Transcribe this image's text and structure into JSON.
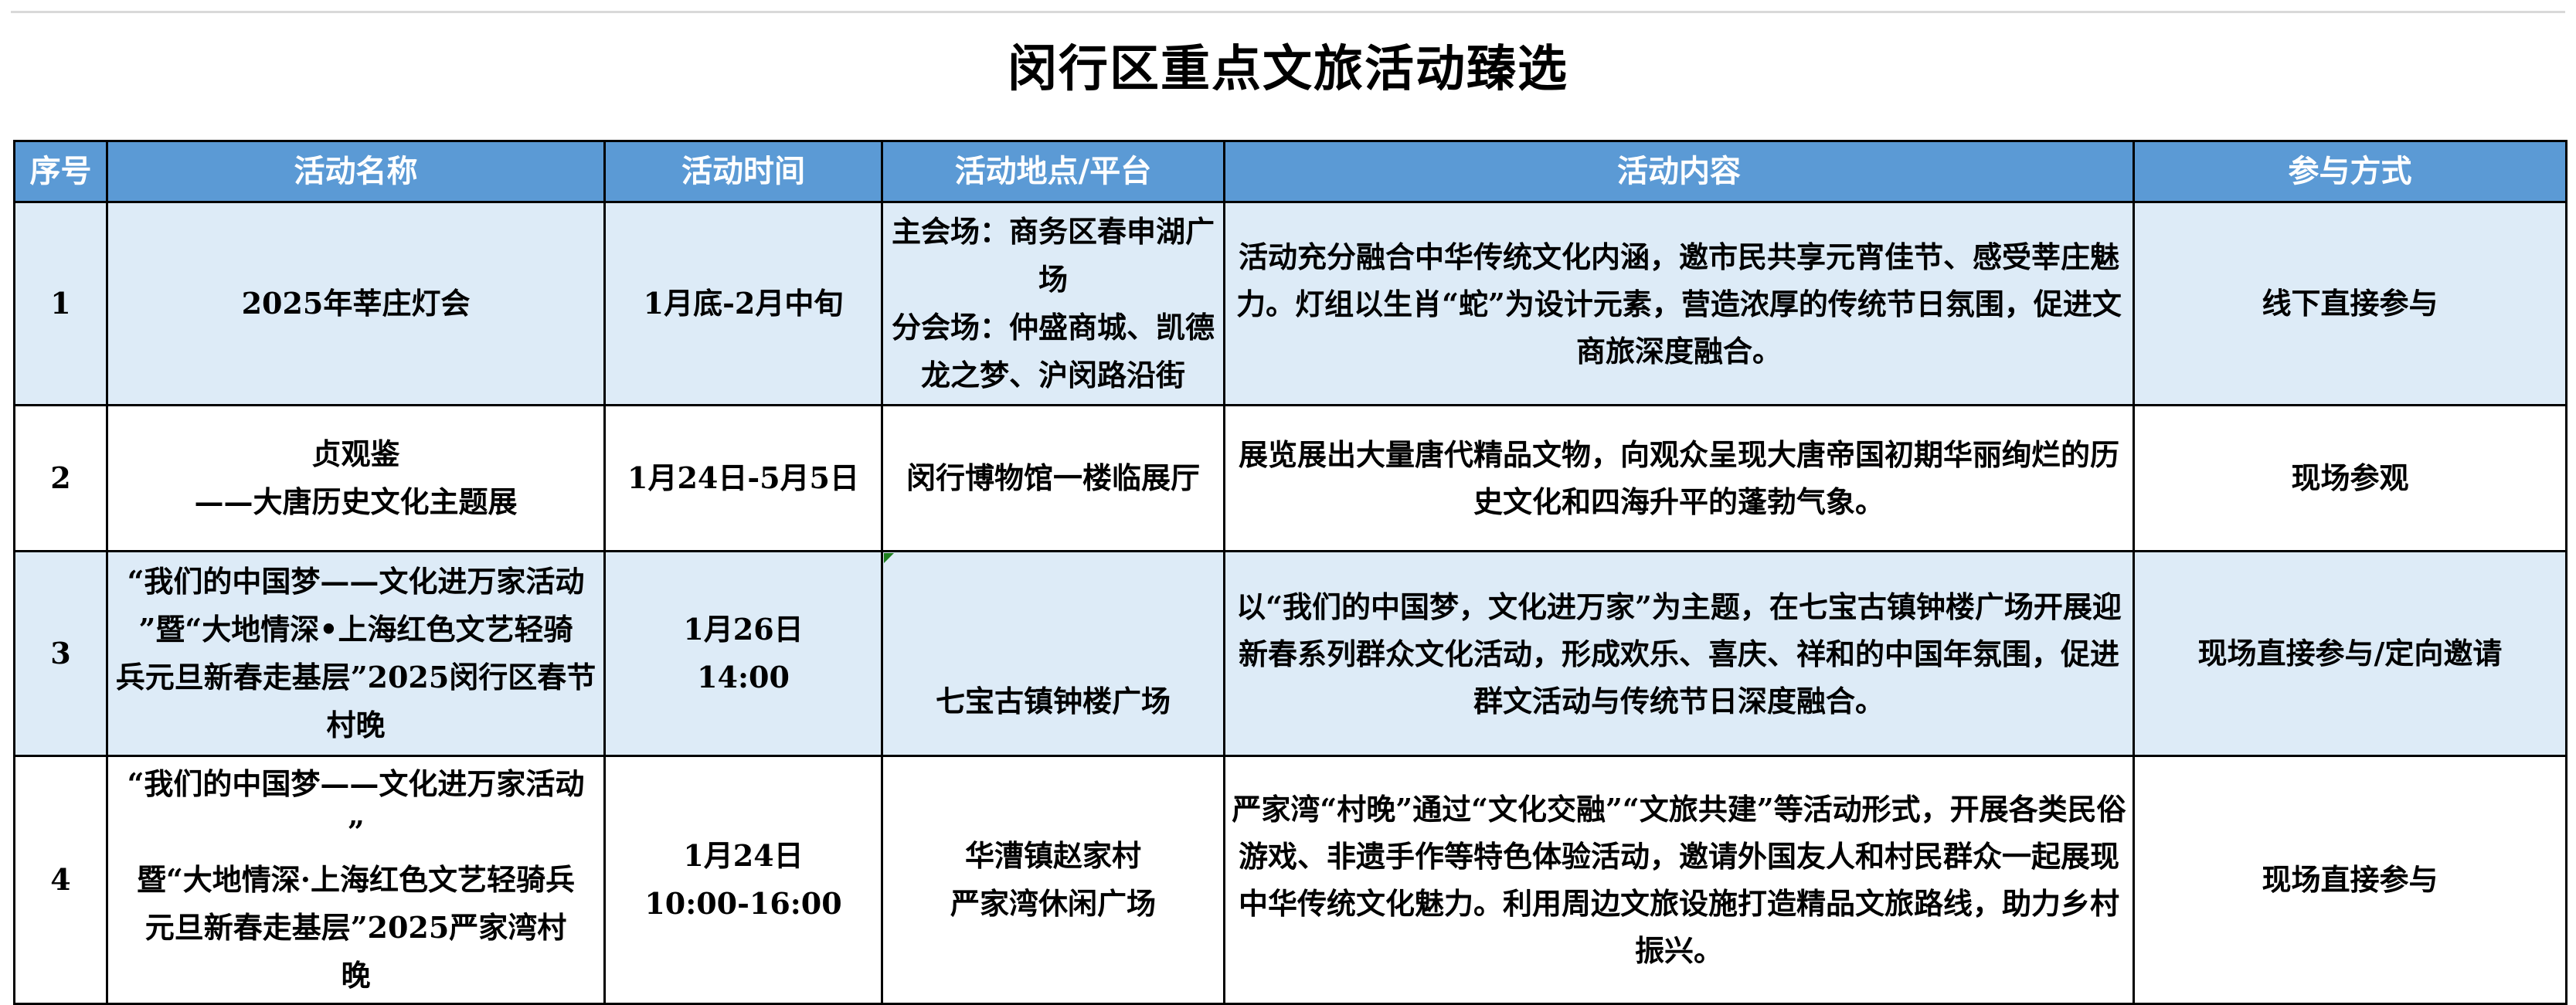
{
  "title": "闵行区重点文旅活动臻选",
  "columns": [
    {
      "label": "序号"
    },
    {
      "label": "活动名称"
    },
    {
      "label": "活动时间"
    },
    {
      "label": "活动地点/平台"
    },
    {
      "label": "活动内容"
    },
    {
      "label": "参与方式"
    }
  ],
  "rows": [
    {
      "index": "1",
      "name": "2025年莘庄灯会",
      "time": "1月底-2月中旬",
      "location": "主会场：商务区春申湖广\n场\n分会场：仲盛商城、凯德\n龙之梦、沪闵路沿街",
      "content": "活动充分融合中华传统文化内涵，邀市民共享元宵佳节、感受莘庄魅力。灯组以生肖“蛇”为设计元素，营造浓厚的传统节日氛围，促进文商旅深度融合。",
      "participation": "线下直接参与"
    },
    {
      "index": "2",
      "name": "贞观鉴\n——大唐历史文化主题展",
      "time": "1月24日-5月5日",
      "location": "闵行博物馆一楼临展厅",
      "content": "展览展出大量唐代精品文物，向观众呈现大唐帝国初期华丽绚烂的历史文化和四海升平的蓬勃气象。",
      "participation": "现场参观"
    },
    {
      "index": "3",
      "name": "“我们的中国梦——文化进万家活动\n”暨“大地情深•上海红色文艺轻骑\n兵元旦新春走基层”2025闵行区春节\n村晚",
      "time": "1月26日\n14:00",
      "location": "七宝古镇钟楼广场",
      "content": "以“我们的中国梦，文化进万家”为主题，在七宝古镇钟楼广场开展迎新春系列群众文化活动，形成欢乐、喜庆、祥和的中国年氛围，促进群文活动与传统节日深度融合。",
      "participation": "现场直接参与/定向邀请"
    },
    {
      "index": "4",
      "name": "“我们的中国梦——文化进万家活动\n”\n暨“大地情深·上海红色文艺轻骑兵\n元旦新春走基层”2025严家湾村\n晚",
      "time": "1月24日\n10:00-16:00",
      "location": "华漕镇赵家村\n严家湾休闲广场",
      "content": "严家湾“村晚”通过“文化交融”“文旅共建”等活动形式，开展各类民俗游戏、非遗手作等特色体验活动，邀请外国友人和村民群众一起展现中华传统文化魅力。利用周边文旅设施打造精品文旅路线，助力乡村振兴。",
      "participation": "现场直接参与"
    }
  ],
  "colors": {
    "header_bg": "#5B9AD5",
    "header_text": "#FFFFFF",
    "row_alt_bg": "#DDEBF7",
    "row_bg": "#FFFFFF",
    "border": "#000000",
    "flag_green": "#1E7E1E",
    "top_rule": "#D9D9D9"
  }
}
